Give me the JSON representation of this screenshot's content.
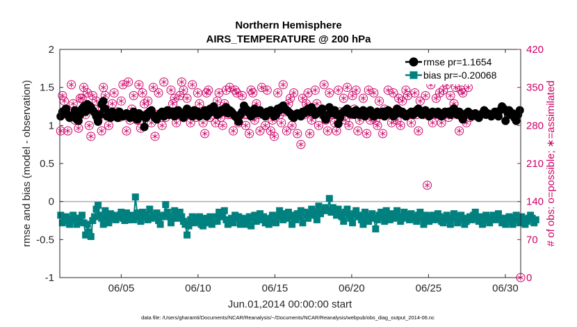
{
  "chart_data": {
    "type": "line",
    "title": "Northern Hemisphere",
    "subtitle": "AIRS_TEMPERATURE @ 200 hPa",
    "xlabel": "Jun.01,2014 00:00:00 start",
    "ylabel_left": "rmse and bias (model - observation)",
    "ylabel_right": "# of obs: o=possible; ∗=assimilated",
    "footnote": "data file: /Users/gharamti/Documents/NCAR/Reanalysis/~/Documents/NCAR/Reanalysis/webpub/obs_diag_output_2014-06.nc",
    "x_range": [
      1.0,
      31.0
    ],
    "ylim_left": [
      -1,
      2
    ],
    "ylim_right": [
      0,
      420
    ],
    "x_ticks": [
      5,
      10,
      15,
      20,
      25,
      30
    ],
    "x_tick_labels": [
      "06/05",
      "06/10",
      "06/15",
      "06/20",
      "06/25",
      "06/30"
    ],
    "y_ticks_left": [
      -1,
      -0.5,
      0,
      0.5,
      1,
      1.5,
      2
    ],
    "y_tick_labels_left": [
      "-1",
      "-0.5",
      "0",
      "0.5",
      "1",
      "1.5",
      "2"
    ],
    "y_ticks_right": [
      0,
      70,
      140,
      210,
      280,
      350,
      420
    ],
    "y_tick_labels_right": [
      "0",
      "70",
      "140",
      "210",
      "280",
      "350",
      "420"
    ],
    "zero_line": 0,
    "colors": {
      "rmse": "#000000",
      "bias": "#00807f",
      "obs": "#cc0066",
      "zero": "#b3b3b3",
      "axis": "#262626"
    },
    "series": [
      {
        "name": "rmse",
        "legend": "rmse pr=1.1654",
        "values": [
          1.12,
          1.18,
          1.15,
          1.22,
          1.14,
          1.1,
          1.13,
          1.12,
          1.2,
          1.08,
          1.06,
          1.14,
          1.22,
          1.25,
          1.18,
          1.28,
          1.26,
          1.24,
          1.2,
          1.17,
          1.12,
          1.05,
          1.14,
          1.28,
          1.32,
          1.22,
          1.12,
          1.15,
          1.1,
          1.18,
          1.12,
          1.16,
          1.1,
          1.18,
          1.15,
          1.12,
          1.13,
          1.16,
          1.14,
          1.1,
          1.15,
          1.18,
          1.12,
          1.08,
          1.16,
          1.14,
          1.12,
          0.98,
          1.1,
          1.16,
          1.18,
          1.2,
          1.14,
          1.1,
          1.08,
          1.12,
          1.16,
          1.18,
          1.12,
          1.15,
          1.2,
          1.14,
          1.16,
          1.18,
          1.12,
          1.14,
          1.2,
          1.16,
          1.14,
          1.1,
          1.18,
          1.22,
          1.16,
          1.14,
          1.12,
          1.2,
          1.15,
          1.18,
          1.12,
          1.14,
          1.16,
          1.2,
          1.12,
          1.15,
          1.22,
          1.18,
          1.25,
          1.2,
          1.14,
          1.16,
          1.2,
          1.18,
          1.22,
          1.24,
          1.16,
          1.2,
          1.18,
          1.15,
          1.12,
          1.1,
          1.05,
          1.14,
          1.18,
          1.26,
          1.22,
          1.2,
          1.16,
          1.12,
          1.18,
          1.22,
          1.16,
          1.18,
          1.2,
          1.15,
          1.14,
          1.12,
          1.18,
          1.16,
          1.2,
          1.18,
          1.12,
          1.14,
          1.22,
          1.2,
          1.24,
          1.26,
          1.22,
          1.2,
          1.18,
          1.16,
          1.12,
          1.1,
          1.14,
          1.16,
          1.15,
          1.12,
          1.18,
          1.16,
          1.2,
          1.22,
          1.18,
          1.24,
          1.2,
          1.14,
          1.16,
          1.18,
          1.2,
          1.22,
          1.12,
          1.08,
          1.14,
          1.24,
          1.18,
          1.16,
          1.2,
          1.14,
          1.02,
          1.1,
          1.16,
          1.18,
          1.2,
          1.22,
          1.16,
          1.15,
          1.18,
          1.14,
          1.2,
          1.16,
          1.14,
          1.18,
          1.2,
          1.12,
          1.16,
          1.18,
          1.2,
          1.14,
          1.12,
          1.16,
          1.18,
          1.14,
          1.16,
          1.18,
          1.12,
          1.14,
          1.2,
          1.18,
          1.16,
          1.12,
          1.14,
          1.22,
          1.2,
          1.16,
          1.18,
          1.14,
          1.12,
          1.15,
          1.16,
          1.18,
          1.14,
          1.16,
          1.2,
          1.22,
          1.16,
          1.14,
          1.18,
          1.2,
          1.16,
          1.12,
          1.14,
          1.18,
          1.16,
          1.15,
          1.18,
          1.16,
          1.12,
          1.14,
          1.18,
          1.16,
          1.18,
          1.14,
          1.2,
          1.22,
          1.16,
          1.14,
          1.18,
          1.12,
          1.08,
          1.14,
          1.16,
          1.18,
          1.16,
          1.12,
          1.14,
          1.16,
          1.12,
          1.1,
          1.14,
          1.16,
          1.2,
          1.14,
          1.16,
          1.14,
          1.12,
          1.14,
          1.18,
          1.16,
          1.12,
          1.2,
          1.25,
          1.22,
          1.06,
          1.18,
          1.2,
          1.14,
          1.16,
          1.1,
          1.06,
          1.14,
          1.2
        ]
      },
      {
        "name": "bias",
        "legend": "bias pr=-0.20068",
        "values": [
          -0.18,
          -0.28,
          -0.22,
          -0.2,
          -0.25,
          -0.3,
          -0.24,
          -0.18,
          -0.22,
          -0.3,
          -0.26,
          -0.22,
          -0.18,
          -0.28,
          -0.44,
          -0.3,
          -0.4,
          -0.46,
          -0.25,
          -0.2,
          -0.1,
          -0.05,
          -0.18,
          -0.22,
          -0.3,
          -0.12,
          -0.2,
          -0.28,
          -0.16,
          -0.18,
          -0.22,
          -0.24,
          -0.2,
          -0.18,
          -0.14,
          -0.22,
          -0.25,
          -0.15,
          -0.24,
          -0.18,
          -0.2,
          -0.24,
          0.06,
          -0.15,
          -0.2,
          -0.26,
          -0.14,
          -0.2,
          -0.18,
          -0.24,
          -0.1,
          -0.22,
          -0.18,
          -0.2,
          -0.15,
          -0.25,
          -0.3,
          -0.2,
          -0.18,
          -0.04,
          -0.14,
          -0.2,
          -0.28,
          -0.22,
          -0.12,
          -0.18,
          -0.22,
          -0.14,
          -0.2,
          -0.26,
          -0.3,
          -0.44,
          -0.32,
          -0.24,
          -0.2,
          -0.28,
          -0.22,
          -0.26,
          -0.2,
          -0.3,
          -0.32,
          -0.22,
          -0.26,
          -0.28,
          -0.2,
          -0.3,
          -0.24,
          -0.2,
          -0.26,
          -0.14,
          -0.2,
          -0.18,
          -0.12,
          -0.24,
          -0.3,
          -0.26,
          -0.22,
          -0.28,
          -0.18,
          -0.22,
          -0.2,
          -0.3,
          -0.22,
          -0.26,
          -0.3,
          -0.24,
          -0.2,
          -0.32,
          -0.22,
          -0.18,
          -0.26,
          -0.2,
          -0.16,
          -0.24,
          -0.2,
          -0.28,
          -0.24,
          -0.3,
          -0.22,
          -0.18,
          -0.26,
          -0.28,
          -0.2,
          -0.12,
          -0.18,
          -0.24,
          -0.16,
          -0.22,
          -0.14,
          -0.2,
          -0.3,
          -0.18,
          -0.24,
          -0.16,
          -0.2,
          -0.12,
          -0.28,
          -0.14,
          -0.18,
          -0.22,
          -0.16,
          -0.1,
          -0.18,
          -0.14,
          -0.24,
          -0.06,
          -0.16,
          -0.12,
          -0.1,
          -0.08,
          -0.12,
          0.04,
          -0.14,
          -0.08,
          -0.12,
          -0.18,
          -0.1,
          -0.16,
          -0.2,
          -0.26,
          -0.14,
          -0.1,
          -0.18,
          -0.22,
          -0.28,
          -0.16,
          -0.12,
          -0.2,
          -0.18,
          -0.24,
          -0.3,
          -0.14,
          -0.22,
          -0.26,
          -0.2,
          -0.16,
          -0.22,
          -0.36,
          -0.24,
          -0.18,
          -0.14,
          -0.2,
          -0.26,
          -0.12,
          -0.2,
          -0.24,
          -0.16,
          -0.22,
          -0.18,
          -0.12,
          -0.2,
          -0.26,
          -0.22,
          -0.14,
          -0.2,
          -0.18,
          -0.24,
          -0.16,
          -0.22,
          -0.2,
          -0.26,
          -0.18,
          -0.14,
          -0.22,
          -0.3,
          -0.18,
          -0.22,
          -0.26,
          -0.2,
          -0.18,
          -0.24,
          -0.22,
          -0.16,
          -0.2,
          -0.26,
          -0.28,
          -0.22,
          -0.18,
          -0.24,
          -0.3,
          -0.22,
          -0.16,
          -0.2,
          -0.28,
          -0.24,
          -0.18,
          -0.22,
          -0.3,
          -0.26,
          -0.22,
          -0.2,
          -0.24,
          -0.18,
          -0.14,
          -0.22,
          -0.26,
          -0.2,
          -0.3,
          -0.22,
          -0.18,
          -0.24,
          -0.28,
          -0.22,
          -0.18,
          -0.24,
          -0.2,
          -0.16,
          -0.22,
          -0.28,
          -0.22,
          -0.3,
          -0.24,
          -0.2,
          -0.26,
          -0.3,
          -0.22,
          -0.18,
          -0.24,
          -0.28,
          -0.2,
          -0.24,
          -0.3,
          -0.26,
          -0.22,
          -0.18,
          -0.22,
          -0.28,
          -0.24
        ]
      }
    ],
    "obs_possible": [
      270,
      335,
      325,
      310,
      270,
      295,
      355,
      320,
      290,
      305,
      275,
      330,
      330,
      350,
      300,
      340,
      280,
      260,
      335,
      310,
      325,
      290,
      300,
      270,
      350,
      335,
      300,
      280,
      295,
      320,
      340,
      300,
      305,
      295,
      325,
      355,
      300,
      270,
      360,
      290,
      310,
      335,
      300,
      290,
      355,
      275,
      340,
      320,
      300,
      325,
      305,
      285,
      350,
      260,
      300,
      340,
      300,
      280,
      360,
      295,
      300,
      300,
      345,
      320,
      330,
      285,
      300,
      335,
      360,
      345,
      300,
      330,
      300,
      285,
      355,
      300,
      295,
      340,
      320,
      300,
      285,
      265,
      340,
      345,
      295,
      310,
      300,
      285,
      325,
      340,
      295,
      280,
      320,
      345,
      300,
      350,
      300,
      270,
      345,
      340,
      285,
      300,
      335,
      300,
      280,
      300,
      265,
      345,
      340,
      290,
      320,
      300,
      270,
      350,
      300,
      280,
      345,
      300,
      270,
      290,
      260,
      300,
      340,
      300,
      285,
      355,
      305,
      270,
      320,
      330,
      280,
      340,
      300,
      265,
      300,
      245,
      330,
      300,
      320,
      340,
      265,
      290,
      300,
      345,
      320,
      280,
      305,
      300,
      355,
      290,
      270,
      340,
      300,
      300,
      285,
      270,
      345,
      305,
      300,
      330,
      290,
      350,
      280,
      300,
      335,
      310,
      345,
      270,
      290,
      300,
      330,
      305,
      265,
      345,
      290,
      300,
      340,
      290,
      280,
      325,
      300,
      265,
      310,
      300,
      345,
      300,
      285,
      340,
      305,
      290,
      330,
      280,
      325,
      300,
      345,
      335,
      300,
      285,
      300,
      340,
      300,
      270,
      325,
      305,
      300,
      335,
      170,
      300,
      355,
      285,
      300,
      330,
      300,
      340,
      285,
      345,
      300,
      355,
      295,
      335,
      300,
      320,
      350,
      300,
      270,
      345,
      340,
      300,
      285,
      350,
      295,
      300,
      300
    ],
    "obs_assimilated": [
      270,
      335,
      325,
      310,
      270,
      295,
      355,
      320,
      290,
      305,
      275,
      330,
      330,
      350,
      300,
      340,
      280,
      260,
      335,
      310,
      325,
      290,
      300,
      270,
      350,
      335,
      300,
      280,
      295,
      320,
      340,
      300,
      305,
      295,
      325,
      355,
      300,
      270,
      360,
      290,
      310,
      335,
      300,
      290,
      355,
      275,
      340,
      320,
      300,
      325,
      305,
      285,
      350,
      260,
      300,
      340,
      300,
      280,
      360,
      295,
      300,
      300,
      345,
      320,
      330,
      285,
      300,
      335,
      360,
      345,
      300,
      330,
      300,
      285,
      355,
      300,
      295,
      340,
      320,
      300,
      285,
      265,
      340,
      345,
      295,
      310,
      300,
      285,
      325,
      340,
      295,
      280,
      320,
      345,
      300,
      350,
      300,
      270,
      345,
      340,
      285,
      300,
      335,
      300,
      280,
      300,
      265,
      345,
      340,
      290,
      320,
      300,
      270,
      350,
      300,
      280,
      345,
      300,
      270,
      290,
      260,
      300,
      340,
      300,
      285,
      355,
      305,
      270,
      320,
      330,
      280,
      340,
      300,
      265,
      300,
      245,
      330,
      300,
      320,
      340,
      265,
      290,
      300,
      345,
      320,
      280,
      305,
      300,
      355,
      290,
      270,
      340,
      300,
      300,
      285,
      270,
      345,
      305,
      300,
      330,
      290,
      350,
      280,
      300,
      335,
      310,
      345,
      270,
      290,
      300,
      330,
      305,
      265,
      345,
      290,
      300,
      340,
      290,
      280,
      325,
      300,
      265,
      310,
      300,
      345,
      300,
      285,
      340,
      305,
      290,
      330,
      280,
      325,
      300,
      345,
      335,
      300,
      285,
      300,
      340,
      300,
      270,
      325,
      305,
      300,
      335,
      170,
      300,
      355,
      285,
      300,
      330,
      300,
      340,
      285,
      345,
      300,
      355,
      295,
      335,
      300,
      320,
      350,
      300,
      270,
      345,
      340,
      300,
      285,
      350,
      295,
      300,
      300
    ],
    "obs_extra": [
      {
        "x": 31.0,
        "possible": 0,
        "assimilated": 0
      }
    ]
  }
}
